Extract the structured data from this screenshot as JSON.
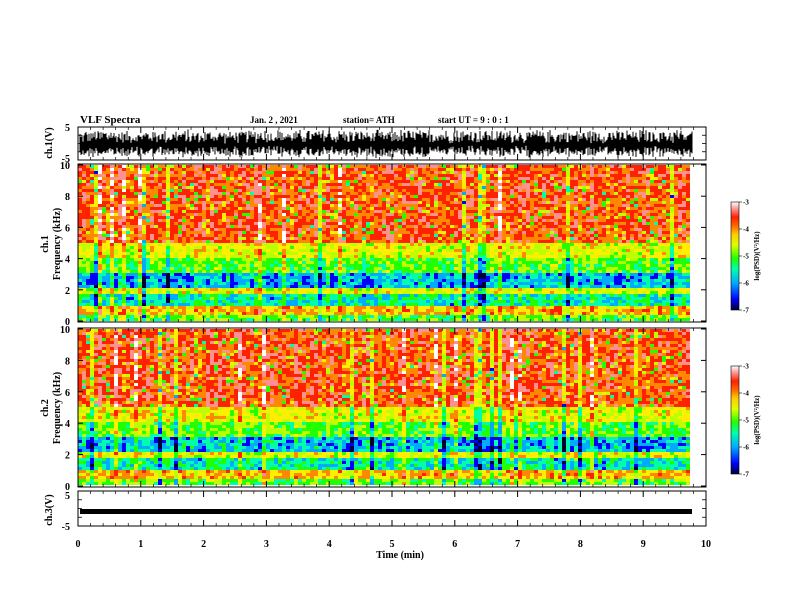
{
  "header": {
    "title": "VLF Spectra",
    "date": "Jan. 2 , 2021",
    "station": "station= ATH",
    "start": "start UT =  9 : 0 : 1"
  },
  "chart_data": [
    {
      "type": "line",
      "panel": "waveform-ch1",
      "ylabel": "ch.1(V)",
      "yticks": [
        "5",
        "-5"
      ],
      "ylim": [
        -5,
        5
      ],
      "xlim": [
        0,
        10
      ]
    },
    {
      "type": "heatmap",
      "panel": "spectrogram-ch1",
      "ylabel_line1": "ch.1",
      "ylabel_line2": "Frequency (kHz)",
      "yticks": [
        "0",
        "2",
        "4",
        "6",
        "8",
        "10"
      ],
      "ylim": [
        0,
        10
      ],
      "xlim": [
        0,
        9.83
      ],
      "colorbar": {
        "label": "log(PSD)(V²/Hz)",
        "ticks": [
          "-3",
          "-4",
          "-5",
          "-6",
          "-7"
        ],
        "range": [
          -7,
          -3
        ]
      }
    },
    {
      "type": "heatmap",
      "panel": "spectrogram-ch2",
      "ylabel_line1": "ch.2",
      "ylabel_line2": "Frequency (kHz)",
      "yticks": [
        "0",
        "2",
        "4",
        "6",
        "8",
        "10"
      ],
      "ylim": [
        0,
        10
      ],
      "xlim": [
        0,
        9.83
      ],
      "colorbar": {
        "label": "log(PSD)(V²/Hz)",
        "ticks": [
          "-3",
          "-4",
          "-5",
          "-6",
          "-7"
        ],
        "range": [
          -7,
          -3
        ]
      }
    },
    {
      "type": "line",
      "panel": "waveform-ch3",
      "ylabel": "ch.3(V)",
      "yticks": [
        "5",
        "-5"
      ],
      "ylim": [
        -5,
        5
      ],
      "xlim": [
        0,
        10
      ],
      "xlabel": "Time (min)",
      "xticks": [
        "0",
        "1",
        "2",
        "3",
        "4",
        "5",
        "6",
        "7",
        "8",
        "9",
        "10"
      ]
    }
  ],
  "colors": {
    "colormap": [
      "#000033",
      "#0000ff",
      "#00aaff",
      "#00ffaa",
      "#22ff00",
      "#bbff00",
      "#ffee00",
      "#ff8800",
      "#ff2200",
      "#ff9090",
      "#ffffff"
    ]
  }
}
